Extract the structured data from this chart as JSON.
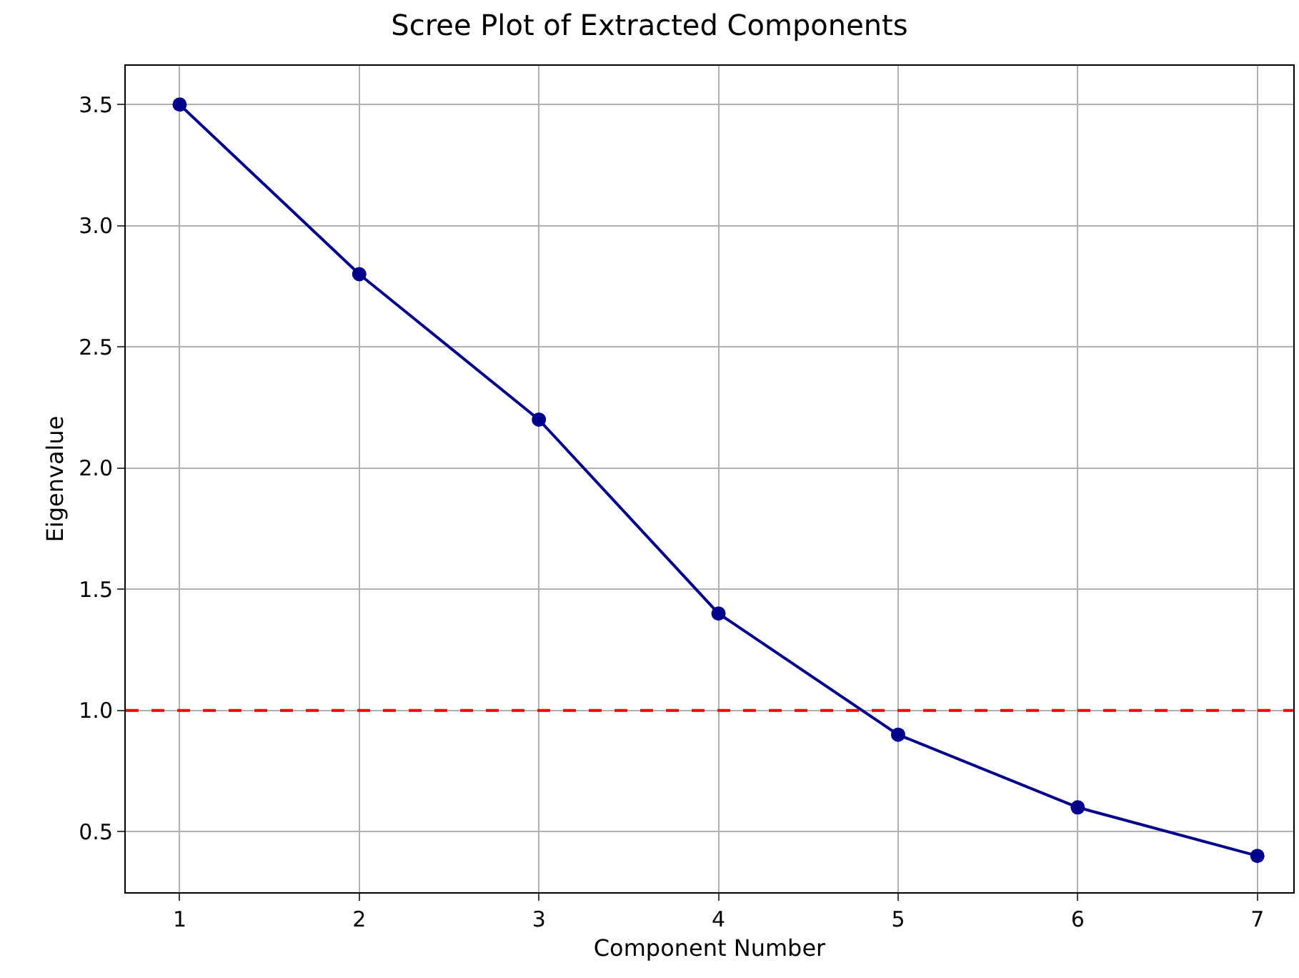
{
  "chart_data": {
    "type": "line",
    "title": "Scree Plot of Extracted Components",
    "xlabel": "Component Number",
    "ylabel": "Eigenvalue",
    "x": [
      1,
      2,
      3,
      4,
      5,
      6,
      7
    ],
    "series": [
      {
        "color": "#00008b",
        "values": [
          3.5,
          2.8,
          2.2,
          1.4,
          0.9,
          0.6,
          0.4
        ]
      }
    ],
    "xlim": [
      0.7,
      7.2
    ],
    "xticks": [
      1,
      2,
      3,
      4,
      5,
      6,
      7
    ],
    "ylim": [
      0.25,
      3.66
    ],
    "yticks": [
      0.5,
      {
        "value": 1,
        "label": "1.0"
      },
      1.5,
      {
        "value": 2,
        "label": "2.0"
      },
      2.5,
      {
        "value": 3,
        "label": "3.0"
      },
      3.5
    ],
    "ref_lines": [
      {
        "axis": "y",
        "value": 1.0,
        "color": "#ff0000",
        "line_style": "dashed"
      }
    ],
    "grid": true,
    "marker": "circle",
    "line_style": "solid"
  }
}
